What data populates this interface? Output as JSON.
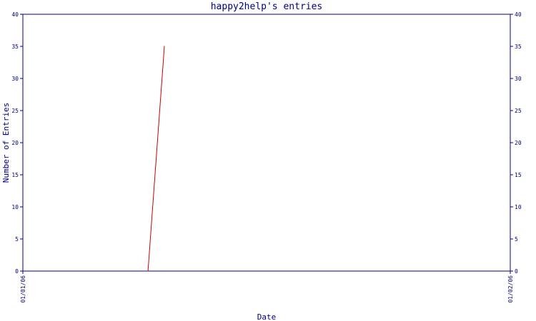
{
  "chart_data": {
    "type": "line",
    "title": "happy2help's entries",
    "xlabel": "Date",
    "ylabel": "Number of Entries",
    "ylim": [
      0,
      40
    ],
    "yticks": [
      0,
      5,
      10,
      15,
      20,
      25,
      30,
      35,
      40
    ],
    "xticks": [
      "01/01/06",
      "01/02/06"
    ],
    "xlim": [
      "2006-01-01",
      "2006-02-01"
    ],
    "grid": false,
    "series": [
      {
        "color": "#cc0000",
        "points": [
          {
            "x": "2006-01-08 23:00",
            "y": 0
          },
          {
            "x": "2006-01-10 00:00",
            "y": 35
          }
        ]
      }
    ],
    "colors": {
      "axis": "#000080",
      "line": "#cc0000",
      "background": "#ffffff"
    }
  }
}
